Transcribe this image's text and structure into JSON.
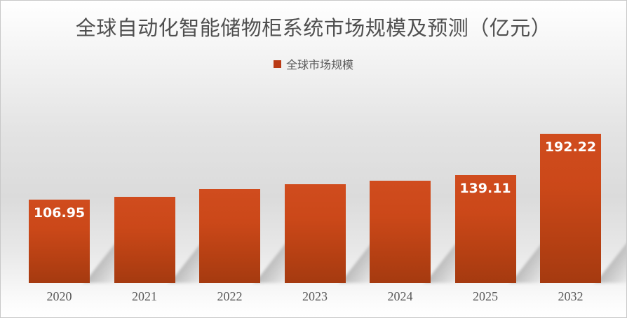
{
  "page": {
    "border_color": "#c8c8c8",
    "background_mid_color": "#dbdbdb"
  },
  "legend": {
    "label": "全球市场规模",
    "swatch_color": "#b93a15"
  },
  "chart_data": {
    "type": "bar",
    "title": "全球自动化智能储物柜系统市场规模及预测（亿元）",
    "categories": [
      "2020",
      "2021",
      "2022",
      "2023",
      "2024",
      "2025",
      "2032"
    ],
    "series": [
      {
        "name": "全球市场规模",
        "values": [
          106.95,
          111,
          121,
          127,
          132,
          139.11,
          192.22
        ]
      }
    ],
    "data_labels": [
      "106.95",
      null,
      null,
      null,
      null,
      "139.11",
      "192.22"
    ],
    "unlabeled_values_estimated": true,
    "xlabel": "",
    "ylabel": "",
    "ylim": [
      0,
      200
    ],
    "grid": false,
    "legend_position": "top-center",
    "colors": {
      "bar_gradient_top": "#d04c1e",
      "bar_gradient_bottom": "#a53a10",
      "data_label": "#ffffff",
      "axis_label": "#595959",
      "title": "#4f4f4f"
    }
  }
}
